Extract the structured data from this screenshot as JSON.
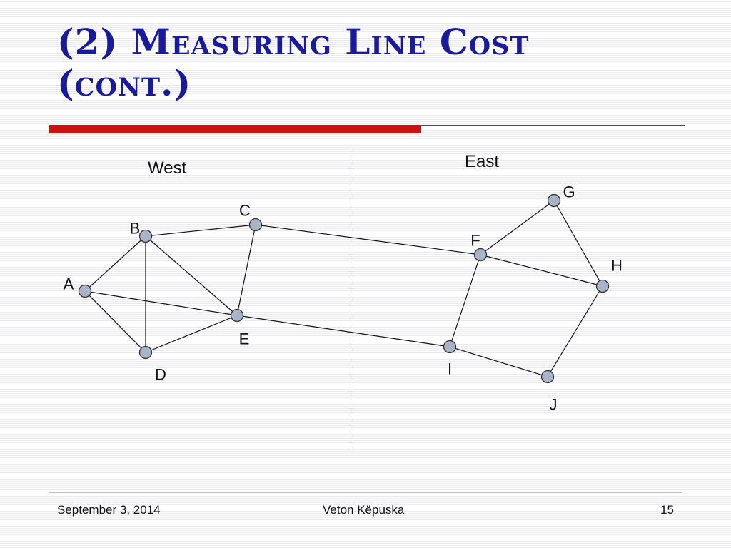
{
  "slide": {
    "title_line1": "(2) Measuring Line Cost",
    "title_line2": "(cont.)",
    "west_label": "West",
    "east_label": "East"
  },
  "graph": {
    "nodes": [
      {
        "id": "A",
        "label": "A"
      },
      {
        "id": "B",
        "label": "B"
      },
      {
        "id": "C",
        "label": "C"
      },
      {
        "id": "D",
        "label": "D"
      },
      {
        "id": "E",
        "label": "E"
      },
      {
        "id": "F",
        "label": "F"
      },
      {
        "id": "G",
        "label": "G"
      },
      {
        "id": "H",
        "label": "H"
      },
      {
        "id": "I",
        "label": "I"
      },
      {
        "id": "J",
        "label": "J"
      }
    ],
    "edges": [
      [
        "A",
        "B"
      ],
      [
        "A",
        "D"
      ],
      [
        "A",
        "E"
      ],
      [
        "B",
        "C"
      ],
      [
        "B",
        "D"
      ],
      [
        "B",
        "E"
      ],
      [
        "C",
        "E"
      ],
      [
        "C",
        "F"
      ],
      [
        "D",
        "E"
      ],
      [
        "E",
        "I"
      ],
      [
        "F",
        "G"
      ],
      [
        "F",
        "H"
      ],
      [
        "F",
        "I"
      ],
      [
        "G",
        "H"
      ],
      [
        "H",
        "J"
      ],
      [
        "I",
        "J"
      ]
    ],
    "node_fill": "#a9b4c8",
    "node_stroke": "#333333",
    "edge_color": "#111111"
  },
  "footer": {
    "date": "September 3, 2014",
    "author": "Veton Këpuska",
    "page": "15"
  },
  "colors": {
    "title": "#1a1a9c",
    "accent_rule": "#cc1111"
  }
}
